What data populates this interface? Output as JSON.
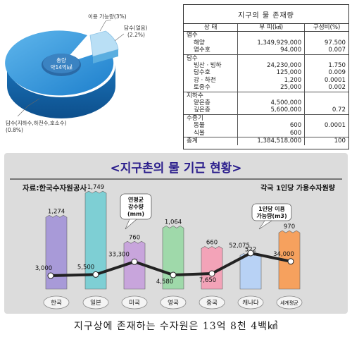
{
  "pie": {
    "center_label": [
      "총량",
      "약14억㎦"
    ],
    "labels": [
      "이용 가능량(3%)",
      "담수(얼음)",
      "(2.2%)",
      "담수(지하수,하천수,호소수)",
      "(0.8%)"
    ]
  },
  "table": {
    "title": "지구의 물 존재량",
    "headers": [
      "상   태",
      "부   피(㎦)",
      "구성비(%)"
    ],
    "rows": [
      {
        "label": "염수",
        "vol": "",
        "pct": "",
        "indent": false,
        "group_start": false
      },
      {
        "label": "해양",
        "vol": "1,349,929,000",
        "pct": "97.500",
        "indent": true,
        "group_start": false
      },
      {
        "label": "염수호",
        "vol": "94,000",
        "pct": "0.007",
        "indent": true,
        "group_start": false
      },
      {
        "label": "담수",
        "vol": "",
        "pct": "",
        "indent": false,
        "group_start": true
      },
      {
        "label": "빙산ㆍ빙하",
        "vol": "24,230,000",
        "pct": "1.750",
        "indent": true,
        "group_start": false
      },
      {
        "label": "담수호",
        "vol": "125,000",
        "pct": "0.009",
        "indent": true,
        "group_start": false
      },
      {
        "label": "강ㆍ하천",
        "vol": "1,200",
        "pct": "0.0001",
        "indent": true,
        "group_start": false
      },
      {
        "label": "토중수",
        "vol": "25,000",
        "pct": "0.002",
        "indent": true,
        "group_start": false
      },
      {
        "label": "지하수",
        "vol": "",
        "pct": "",
        "indent": false,
        "group_start": true
      },
      {
        "label": "얕은층",
        "vol": "4,500,000",
        "pct": "",
        "indent": true,
        "group_start": false
      },
      {
        "label": "깊은층",
        "vol": "5,600,000",
        "pct": "0.72",
        "indent": true,
        "group_start": false
      },
      {
        "label": "수증기",
        "vol": "",
        "pct": "",
        "indent": false,
        "group_start": true
      },
      {
        "label": "동물",
        "vol": "600",
        "pct": "0.0001",
        "indent": true,
        "group_start": false
      },
      {
        "label": "식물",
        "vol": "600",
        "pct": "",
        "indent": true,
        "group_start": false
      },
      {
        "label": "총계",
        "vol": "1,384,518,000",
        "pct": "100",
        "indent": false,
        "group_start": true
      }
    ]
  },
  "chart_data": {
    "type": "bar",
    "title": "<지구촌의 물 기근 현황>",
    "source": "자료:한국수자원공사",
    "subtitle": "각국 1인당 가용수자원량",
    "categories": [
      "한국",
      "일본",
      "미국",
      "영국",
      "중국",
      "캐나다",
      "세계평균"
    ],
    "series": [
      {
        "name": "연평균 강수량 (mm)",
        "type": "bar",
        "values": [
          1274,
          1749,
          760,
          1064,
          660,
          522,
          970
        ],
        "colors": [
          "#a89ad8",
          "#7ecfd4",
          "#c8a5dc",
          "#9fd9aa",
          "#f3a3b8",
          "#b8d2f5",
          "#f6a15e"
        ]
      },
      {
        "name": "1인당 이용 가능량(m3)",
        "type": "line",
        "values": [
          3000,
          5500,
          33300,
          4580,
          7650,
          52075,
          34000
        ],
        "labels": [
          "3,000",
          "5,500",
          "33,300",
          "4,580",
          "7,650",
          "52,075",
          "34,000"
        ]
      }
    ],
    "bar_labels": [
      "1,274",
      "1,749",
      "760",
      "1,064",
      "660",
      "522",
      "970"
    ],
    "callouts": [
      [
        "연평균",
        "강수량",
        "(mm)"
      ],
      [
        "1인당 이용",
        "가능량(m3)"
      ]
    ]
  },
  "footer": "지구상에 존재하는 수자원은 13억 8천 4백㎦"
}
